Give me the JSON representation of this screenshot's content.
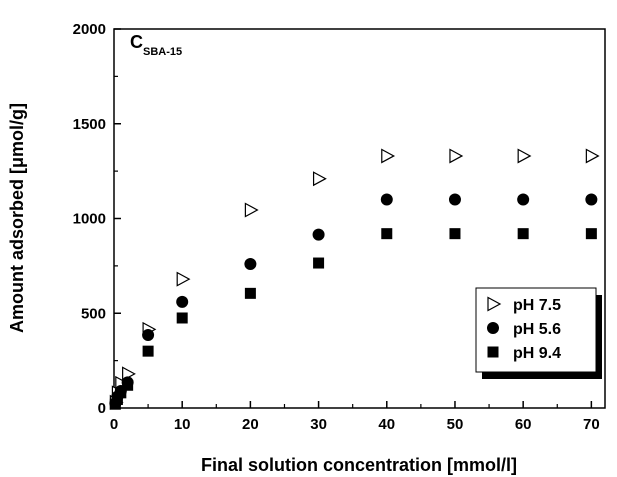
{
  "chart_data": {
    "type": "scatter",
    "annotation": {
      "main": "C",
      "subscript": "SBA-15"
    },
    "xlabel": "Final solution concentration [mmol/l]",
    "ylabel": "Amount adsorbed [μmol/g]",
    "xlim": [
      0,
      72
    ],
    "ylim": [
      0,
      2000
    ],
    "xticks": [
      0,
      10,
      20,
      30,
      40,
      50,
      60,
      70
    ],
    "yticks": [
      0,
      500,
      1000,
      1500,
      2000
    ],
    "xtick_labels": [
      "0",
      "10",
      "20",
      "30",
      "40",
      "50",
      "60",
      "70"
    ],
    "ytick_labels": [
      "0",
      "500",
      "1000",
      "1500",
      "2000"
    ],
    "grid": false,
    "legend_position": "right",
    "series": [
      {
        "name": "pH 7.5",
        "marker": "open-triangle-right",
        "x": [
          0.2,
          0.5,
          1,
          2,
          5,
          10,
          20,
          30,
          40,
          50,
          60,
          70
        ],
        "y": [
          30,
          80,
          130,
          180,
          415,
          680,
          1045,
          1210,
          1330,
          1330,
          1330,
          1330
        ]
      },
      {
        "name": "pH 5.6",
        "marker": "filled-circle",
        "x": [
          0.2,
          0.5,
          1,
          2,
          5,
          10,
          20,
          30,
          40,
          50,
          60,
          70
        ],
        "y": [
          25,
          60,
          90,
          135,
          385,
          560,
          760,
          915,
          1100,
          1100,
          1100,
          1100
        ]
      },
      {
        "name": "pH 9.4",
        "marker": "filled-square",
        "x": [
          0.2,
          0.5,
          1,
          2,
          5,
          10,
          20,
          30,
          40,
          50,
          60,
          70
        ],
        "y": [
          20,
          45,
          80,
          120,
          300,
          475,
          605,
          765,
          920,
          920,
          920,
          920
        ]
      }
    ]
  }
}
